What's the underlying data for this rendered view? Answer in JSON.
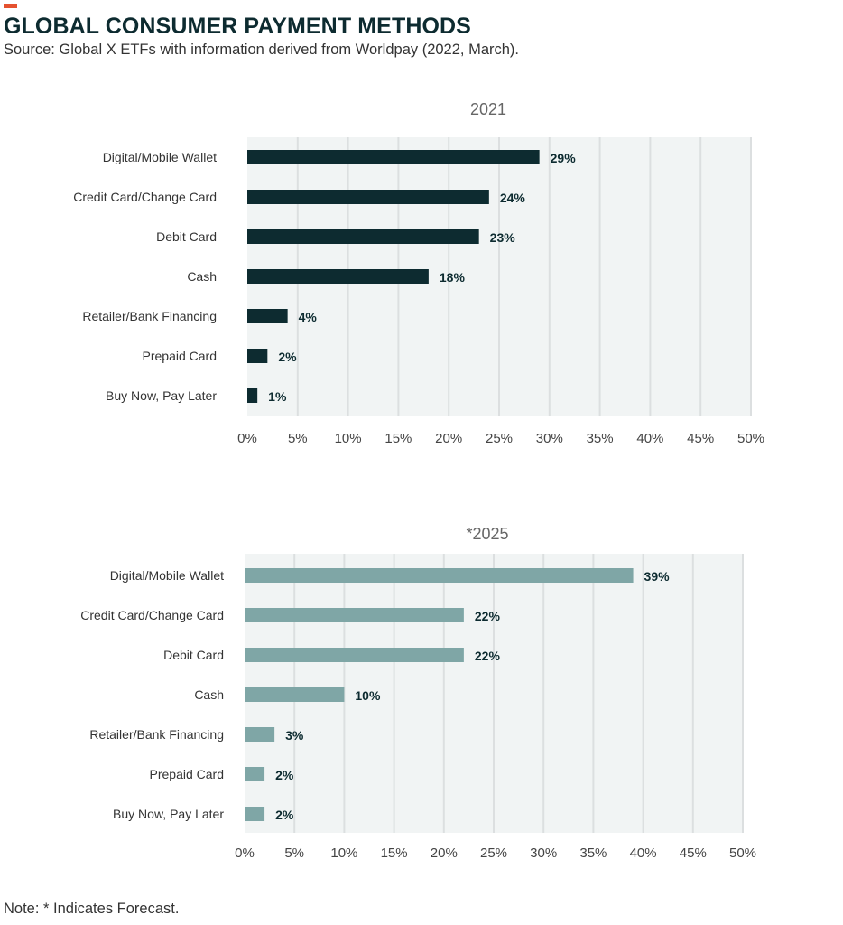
{
  "header": {
    "title": "GLOBAL CONSUMER PAYMENT METHODS",
    "source": "Source: Global X ETFs with information derived from Worldpay (2022, March)."
  },
  "footer": {
    "note": "Note: * Indicates Forecast."
  },
  "colors": {
    "accent": "#e5512f",
    "title": "#0d2b30",
    "plot_bg": "#f1f4f4",
    "grid": "#dcdfe0",
    "bar_2021": "#0d2b30",
    "bar_2025": "#7fa6a6",
    "data_label": "#0d2b30"
  },
  "chart_data": [
    {
      "type": "bar",
      "orientation": "horizontal",
      "title": "2021",
      "categories": [
        "Digital/Mobile Wallet",
        "Credit Card/Change Card",
        "Debit Card",
        "Cash",
        "Retailer/Bank Financing",
        "Prepaid Card",
        "Buy Now, Pay Later"
      ],
      "values": [
        29,
        24,
        23,
        18,
        4,
        2,
        1
      ],
      "value_labels": [
        "29%",
        "24%",
        "23%",
        "18%",
        "4%",
        "2%",
        "1%"
      ],
      "xlim": [
        0,
        50
      ],
      "ticks": [
        0,
        5,
        10,
        15,
        20,
        25,
        30,
        35,
        40,
        45,
        50
      ],
      "tick_labels": [
        "0%",
        "5%",
        "10%",
        "15%",
        "20%",
        "25%",
        "30%",
        "35%",
        "40%",
        "45%",
        "50%"
      ],
      "grid": true,
      "legend": "none"
    },
    {
      "type": "bar",
      "orientation": "horizontal",
      "title": "*2025",
      "categories": [
        "Digital/Mobile Wallet",
        "Credit Card/Change Card",
        "Debit Card",
        "Cash",
        "Retailer/Bank Financing",
        "Prepaid Card",
        "Buy Now, Pay Later"
      ],
      "values": [
        39,
        22,
        22,
        10,
        3,
        2,
        2
      ],
      "value_labels": [
        "39%",
        "22%",
        "22%",
        "10%",
        "3%",
        "2%",
        "2%"
      ],
      "xlim": [
        0,
        50
      ],
      "ticks": [
        0,
        5,
        10,
        15,
        20,
        25,
        30,
        35,
        40,
        45,
        50
      ],
      "tick_labels": [
        "0%",
        "5%",
        "10%",
        "15%",
        "20%",
        "25%",
        "30%",
        "35%",
        "40%",
        "45%",
        "50%"
      ],
      "grid": true,
      "legend": "none"
    }
  ]
}
